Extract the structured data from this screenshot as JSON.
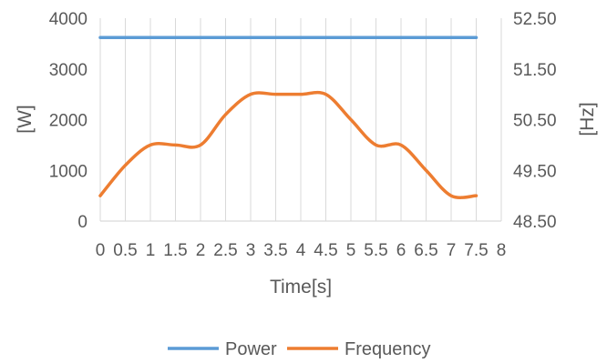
{
  "chart_data": {
    "type": "line",
    "title": "",
    "xlabel": "Time[s]",
    "ylabel_left": "[W]",
    "ylabel_right": "[Hz]",
    "x_ticks": [
      "0",
      "0.5",
      "1",
      "1.5",
      "2",
      "2.5",
      "3",
      "3.5",
      "4",
      "4.5",
      "5",
      "5.5",
      "6",
      "6.5",
      "7",
      "7.5",
      "8"
    ],
    "xlim": [
      0,
      8
    ],
    "ylim_left": [
      0,
      4000
    ],
    "ylim_right": [
      48.5,
      52.5
    ],
    "y_ticks_left": [
      "0",
      "1000",
      "2000",
      "3000",
      "4000"
    ],
    "y_ticks_right": [
      "48.50",
      "49.50",
      "50.50",
      "51.50",
      "52.50"
    ],
    "grid": "vertical",
    "legend_position": "bottom",
    "series": [
      {
        "name": "Power",
        "axis": "left",
        "color": "#5B9BD5",
        "x": [
          0,
          0.5,
          1,
          1.5,
          2,
          2.5,
          3,
          3.5,
          4,
          4.5,
          5,
          5.5,
          6,
          6.5,
          7,
          7.5
        ],
        "y": [
          3620,
          3620,
          3620,
          3620,
          3620,
          3620,
          3620,
          3620,
          3620,
          3620,
          3620,
          3620,
          3620,
          3620,
          3620,
          3620
        ]
      },
      {
        "name": "Frequency",
        "axis": "right",
        "color": "#ED7D31",
        "x": [
          0,
          0.5,
          1,
          1.5,
          2,
          2.5,
          3,
          3.5,
          4,
          4.5,
          5,
          5.5,
          6,
          6.5,
          7,
          7.5
        ],
        "y": [
          49.0,
          49.6,
          50.0,
          50.0,
          50.0,
          50.6,
          51.0,
          51.0,
          51.0,
          51.0,
          50.5,
          50.0,
          50.0,
          49.5,
          49.0,
          49.0
        ]
      }
    ]
  }
}
